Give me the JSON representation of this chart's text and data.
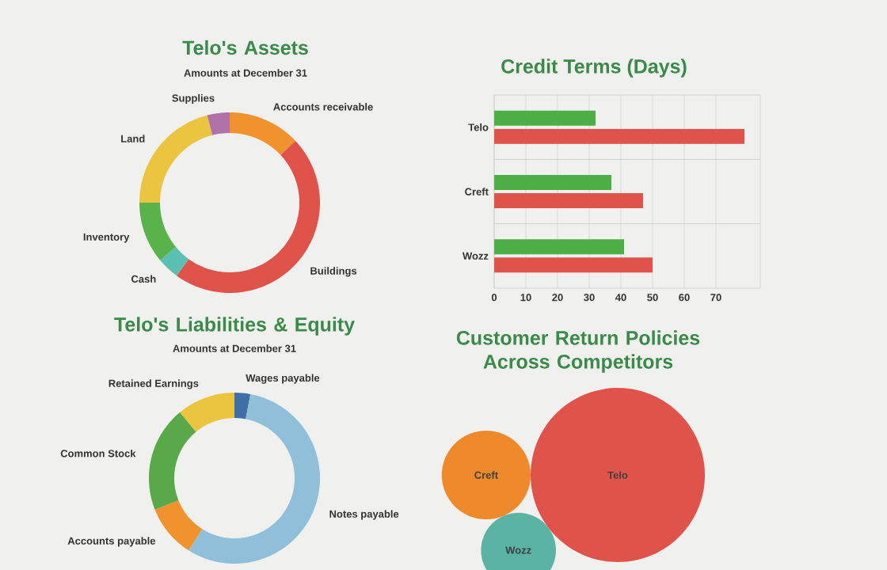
{
  "chart_data": [
    {
      "type": "donut",
      "title": "Telo's Assets",
      "subtitle": "Amounts at December 31",
      "categories": [
        "Accounts receivable",
        "Buildings",
        "Cash",
        "Inventory",
        "Land",
        "Supplies"
      ],
      "values": [
        13,
        47,
        4,
        11,
        21,
        4
      ],
      "colors": [
        "#f0922e",
        "#e0534a",
        "#5bbfb3",
        "#59b34a",
        "#ecc540",
        "#b070a8"
      ]
    },
    {
      "type": "bar",
      "title": "Credit Terms (Days)",
      "orientation": "horizontal",
      "categories": [
        "Telo",
        "Creft",
        "Wozz"
      ],
      "series": [
        {
          "color": "#4caf46",
          "values": [
            32,
            37,
            41
          ]
        },
        {
          "color": "#e0534a",
          "values": [
            79,
            47,
            50
          ]
        }
      ],
      "xlim": [
        0,
        84
      ],
      "xticks": [
        0,
        10,
        20,
        30,
        40,
        50,
        60,
        70
      ],
      "grid": "x"
    },
    {
      "type": "donut",
      "title": "Telo's Liabilities & Equity",
      "subtitle": "Amounts at December 31",
      "categories": [
        "Wages payable",
        "Notes payable",
        "Accounts payable",
        "Common Stock",
        "Retained Earnings"
      ],
      "values": [
        3,
        56,
        10,
        20,
        11
      ],
      "colors": [
        "#3f6fa5",
        "#8fbfd9",
        "#f0922e",
        "#59a84a",
        "#ecc540"
      ]
    },
    {
      "type": "other",
      "title": "Customer Return Policies Across Competitors",
      "categories": [
        "Telo",
        "Creft",
        "Wozz"
      ],
      "colors": [
        "#e0534a",
        "#ee8a2c",
        "#5bb3a3"
      ]
    }
  ]
}
